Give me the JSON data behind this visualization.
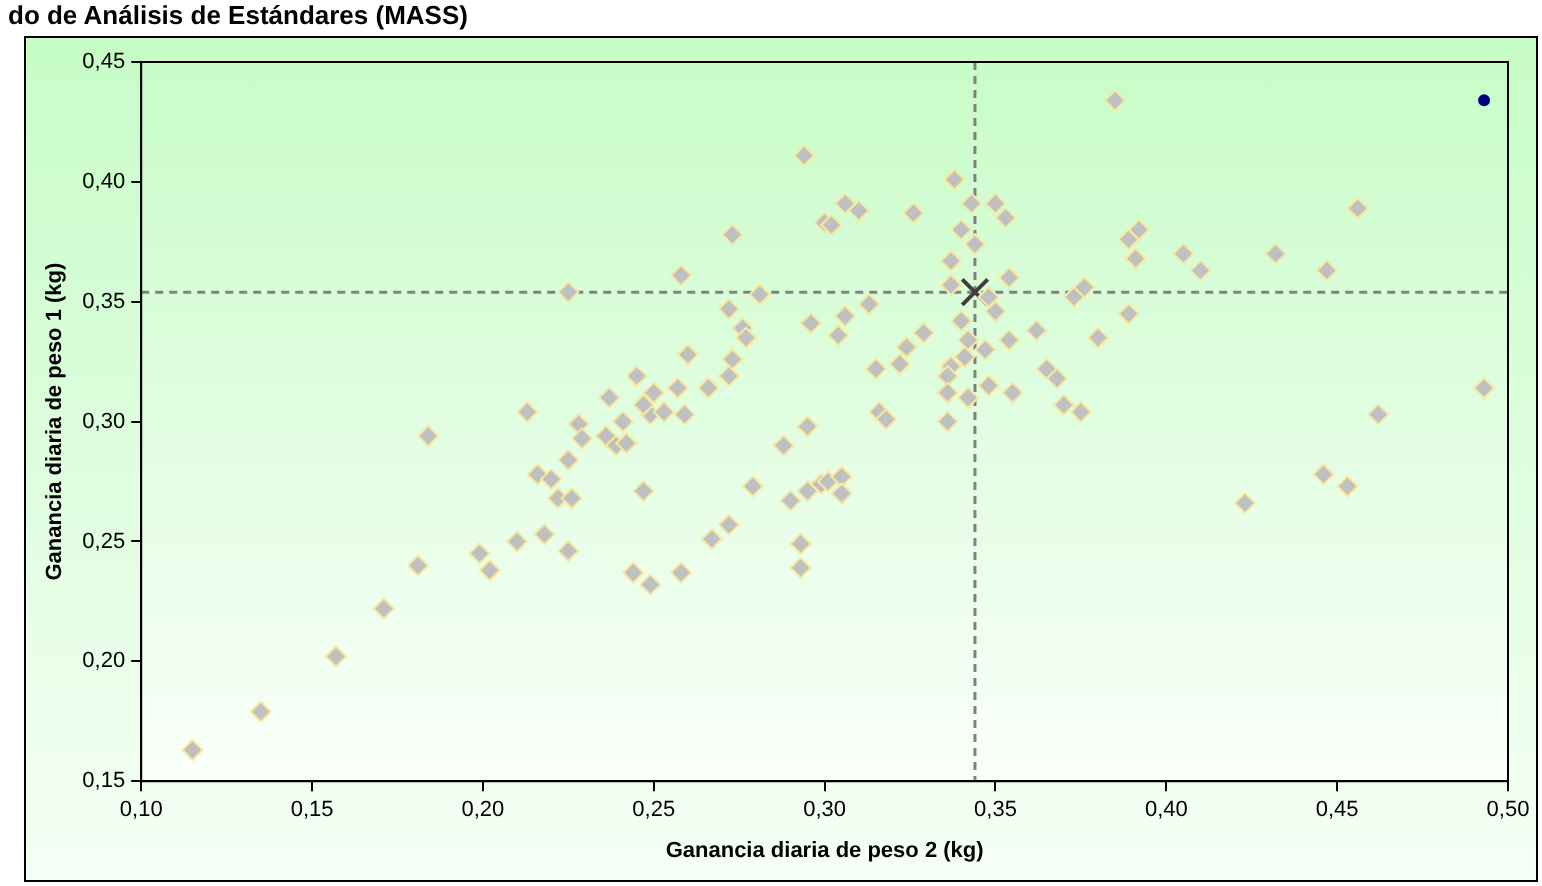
{
  "chart_data": {
    "type": "scatter",
    "title": "do de Análisis de Estándares (MASS)",
    "xlabel": "Ganancia diaria de peso 2 (kg)",
    "ylabel": "Ganancia diaria de peso 1 (kg)",
    "xlim": [
      0.1,
      0.5
    ],
    "ylim": [
      0.15,
      0.45
    ],
    "xticks": [
      {
        "value": 0.1,
        "label": "0,10"
      },
      {
        "value": 0.15,
        "label": "0,15"
      },
      {
        "value": 0.2,
        "label": "0,20"
      },
      {
        "value": 0.25,
        "label": "0,25"
      },
      {
        "value": 0.3,
        "label": "0,30"
      },
      {
        "value": 0.35,
        "label": "0,35"
      },
      {
        "value": 0.4,
        "label": "0,40"
      },
      {
        "value": 0.45,
        "label": "0,45"
      },
      {
        "value": 0.5,
        "label": "0,50"
      }
    ],
    "yticks": [
      {
        "value": 0.15,
        "label": "0,15"
      },
      {
        "value": 0.2,
        "label": "0,20"
      },
      {
        "value": 0.25,
        "label": "0,25"
      },
      {
        "value": 0.3,
        "label": "0,30"
      },
      {
        "value": 0.35,
        "label": "0,35"
      },
      {
        "value": 0.4,
        "label": "0,40"
      },
      {
        "value": 0.45,
        "label": "0,45"
      }
    ],
    "grid": false,
    "legend": false,
    "ref_lines": [
      {
        "axis": "x",
        "value": 0.344,
        "color": "#808080",
        "line_style": "dashed"
      },
      {
        "axis": "y",
        "value": 0.354,
        "color": "#808080",
        "line_style": "dashed"
      }
    ],
    "series": [
      {
        "color": "#c0c0c0",
        "marker": "diamond",
        "x": [
          0.115,
          0.135,
          0.157,
          0.171,
          0.181,
          0.184,
          0.199,
          0.202,
          0.21,
          0.218,
          0.225,
          0.216,
          0.22,
          0.222,
          0.226,
          0.225,
          0.228,
          0.229,
          0.213,
          0.236,
          0.239,
          0.242,
          0.241,
          0.247,
          0.244,
          0.249,
          0.258,
          0.267,
          0.272,
          0.279,
          0.288,
          0.29,
          0.293,
          0.293,
          0.295,
          0.295,
          0.299,
          0.249,
          0.253,
          0.259,
          0.225,
          0.258,
          0.273,
          0.294,
          0.281,
          0.272,
          0.276,
          0.277,
          0.273,
          0.272,
          0.26,
          0.257,
          0.266,
          0.245,
          0.247,
          0.25,
          0.237,
          0.296,
          0.3,
          0.385,
          0.338,
          0.306,
          0.31,
          0.302,
          0.326,
          0.343,
          0.35,
          0.353,
          0.34,
          0.344,
          0.337,
          0.337,
          0.354,
          0.348,
          0.35,
          0.34,
          0.313,
          0.306,
          0.304,
          0.329,
          0.324,
          0.322,
          0.315,
          0.342,
          0.347,
          0.341,
          0.337,
          0.336,
          0.336,
          0.342,
          0.336,
          0.348,
          0.355,
          0.354,
          0.362,
          0.316,
          0.318,
          0.365,
          0.368,
          0.37,
          0.375,
          0.38,
          0.373,
          0.376,
          0.389,
          0.389,
          0.392,
          0.391,
          0.405,
          0.41,
          0.432,
          0.447,
          0.456,
          0.493,
          0.462,
          0.446,
          0.453,
          0.423,
          0.301,
          0.305,
          0.305
        ],
        "values": [
          0.163,
          0.179,
          0.202,
          0.222,
          0.24,
          0.294,
          0.245,
          0.238,
          0.25,
          0.253,
          0.246,
          0.278,
          0.276,
          0.268,
          0.268,
          0.284,
          0.299,
          0.293,
          0.304,
          0.294,
          0.29,
          0.291,
          0.3,
          0.271,
          0.237,
          0.232,
          0.237,
          0.251,
          0.257,
          0.273,
          0.29,
          0.267,
          0.249,
          0.239,
          0.271,
          0.298,
          0.274,
          0.303,
          0.304,
          0.303,
          0.354,
          0.361,
          0.378,
          0.411,
          0.353,
          0.347,
          0.339,
          0.335,
          0.326,
          0.319,
          0.328,
          0.314,
          0.314,
          0.319,
          0.307,
          0.312,
          0.31,
          0.341,
          0.383,
          0.434,
          0.401,
          0.391,
          0.388,
          0.382,
          0.387,
          0.391,
          0.391,
          0.385,
          0.38,
          0.374,
          0.367,
          0.357,
          0.36,
          0.352,
          0.346,
          0.342,
          0.349,
          0.344,
          0.336,
          0.337,
          0.331,
          0.324,
          0.322,
          0.334,
          0.33,
          0.327,
          0.323,
          0.319,
          0.312,
          0.31,
          0.3,
          0.315,
          0.312,
          0.334,
          0.338,
          0.304,
          0.301,
          0.322,
          0.318,
          0.307,
          0.304,
          0.335,
          0.352,
          0.356,
          0.345,
          0.376,
          0.38,
          0.368,
          0.37,
          0.363,
          0.37,
          0.363,
          0.389,
          0.314,
          0.303,
          0.278,
          0.273,
          0.266,
          0.275,
          0.277,
          0.27
        ]
      },
      {
        "color": "#404040",
        "marker": "cross",
        "x": [
          0.344
        ],
        "values": [
          0.354
        ]
      },
      {
        "color": "#000080",
        "marker": "circle",
        "x": [
          0.493
        ],
        "values": [
          0.434
        ]
      }
    ]
  }
}
